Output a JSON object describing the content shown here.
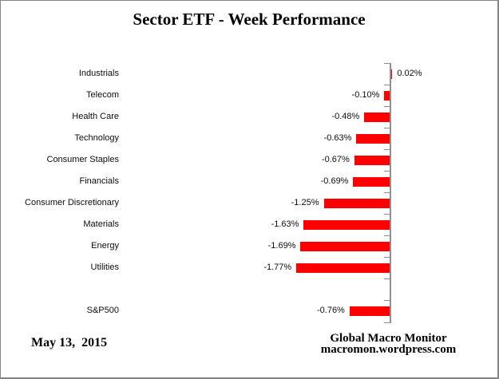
{
  "chart_data": {
    "type": "bar",
    "orientation": "horizontal",
    "title": "Sector ETF - Week Performance",
    "categories": [
      "Industrials",
      "Telecom",
      "Health Care",
      "Technology",
      "Consumer Staples",
      "Financials",
      "Consumer Discretionary",
      "Materials",
      "Energy",
      "Utilities",
      "",
      "S&P500"
    ],
    "values": [
      0.02,
      -0.1,
      -0.48,
      -0.63,
      -0.67,
      -0.69,
      -1.25,
      -1.63,
      -1.69,
      -1.77,
      null,
      -0.76
    ],
    "value_labels": [
      "0.02%",
      "-0.10%",
      "-0.48%",
      "-0.63%",
      "-0.67%",
      "-0.69%",
      "-1.25%",
      "-1.63%",
      "-1.69%",
      "-1.77%",
      "",
      "-0.76%"
    ],
    "xlabel": "",
    "ylabel": "",
    "grid": "off",
    "legend": "none",
    "x_axis_labels_visible": false,
    "bar_color": "#ff0000",
    "axis_color": "#8f8f8f",
    "label_color": "#0d0d0d"
  },
  "footer": {
    "date": "May 13,  2015",
    "attribution_line1": "Global Macro Monitor",
    "attribution_line2": "macromon.wordpress.com"
  }
}
